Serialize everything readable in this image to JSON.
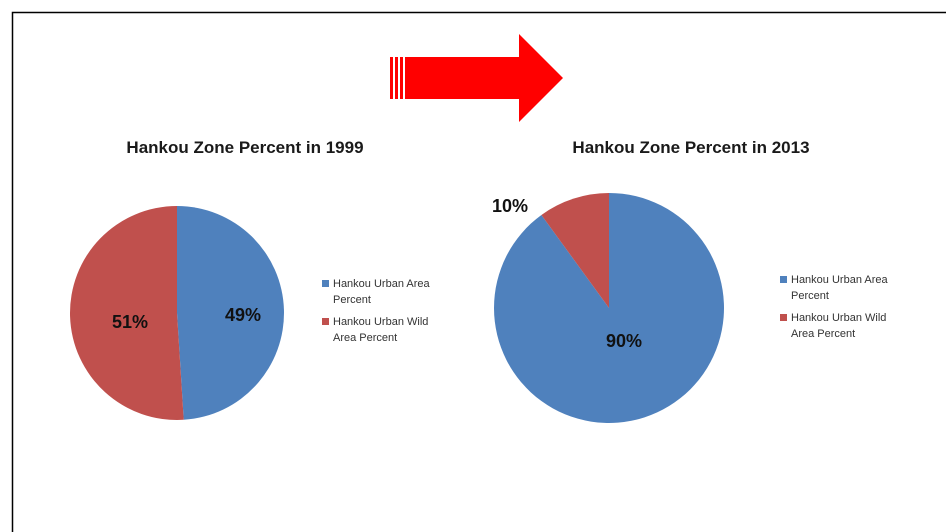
{
  "chart_data": [
    {
      "type": "pie",
      "title": "Hankou Zone Percent in 1999",
      "categories": [
        "Hankou Urban Area Percent",
        "Hankou Urban Wild Area Percent"
      ],
      "values": [
        49,
        51
      ],
      "value_labels": [
        "49%",
        "51%"
      ],
      "colors": [
        "#4f81bd",
        "#c0504d"
      ],
      "legend": "right"
    },
    {
      "type": "pie",
      "title": "Hankou Zone Percent in 2013",
      "categories": [
        "Hankou Urban Area Percent",
        "Hankou Urban Wild Area Percent"
      ],
      "values": [
        90,
        10
      ],
      "value_labels": [
        "90%",
        "10%"
      ],
      "colors": [
        "#4f81bd",
        "#c0504d"
      ],
      "legend": "right"
    }
  ]
}
